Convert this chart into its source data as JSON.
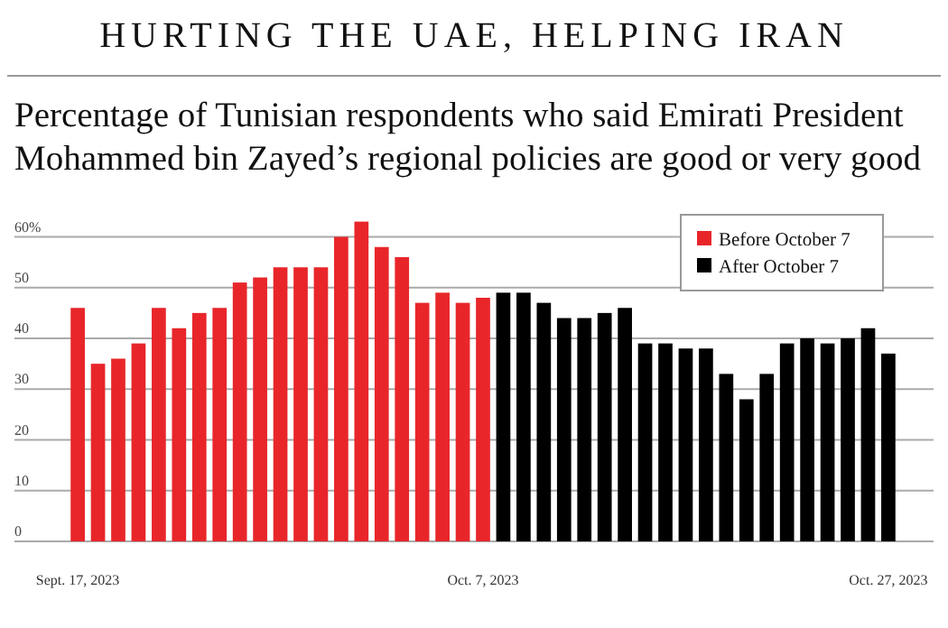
{
  "chart_data": {
    "type": "bar",
    "title": "HURTING THE UAE, HELPING IRAN",
    "subtitle": "Percentage of Tunisian respondents who said Emirati President Mohammed bin Zayed’s regional policies are good or very good",
    "categories": [
      "Sept. 17, 2023",
      null,
      null,
      null,
      null,
      null,
      null,
      null,
      null,
      null,
      null,
      null,
      null,
      null,
      null,
      null,
      null,
      null,
      null,
      null,
      "Oct. 7, 2023",
      null,
      null,
      null,
      null,
      null,
      null,
      null,
      null,
      null,
      null,
      null,
      null,
      null,
      null,
      null,
      null,
      null,
      null,
      null,
      "Oct. 27, 2023"
    ],
    "series": [
      {
        "name": "Before October 7",
        "color": "#e8262a",
        "values": [
          46,
          35,
          36,
          39,
          46,
          42,
          45,
          46,
          51,
          52,
          54,
          54,
          54,
          60,
          63,
          58,
          56,
          47,
          49,
          47,
          48,
          null,
          null,
          null,
          null,
          null,
          null,
          null,
          null,
          null,
          null,
          null,
          null,
          null,
          null,
          null,
          null,
          null,
          null,
          null,
          null
        ]
      },
      {
        "name": "After October 7",
        "color": "#000000",
        "values": [
          null,
          null,
          null,
          null,
          null,
          null,
          null,
          null,
          null,
          null,
          null,
          null,
          null,
          null,
          null,
          null,
          null,
          null,
          null,
          null,
          null,
          49,
          49,
          47,
          44,
          44,
          45,
          46,
          39,
          39,
          38,
          38,
          33,
          28,
          33,
          39,
          40,
          39,
          40,
          42,
          37
        ]
      }
    ],
    "ylim": [
      0,
      64
    ],
    "yticks": [
      0,
      10,
      20,
      30,
      40,
      50,
      {
        "value": 60,
        "label": "60%"
      }
    ],
    "grid": "y",
    "legend": "top right"
  }
}
